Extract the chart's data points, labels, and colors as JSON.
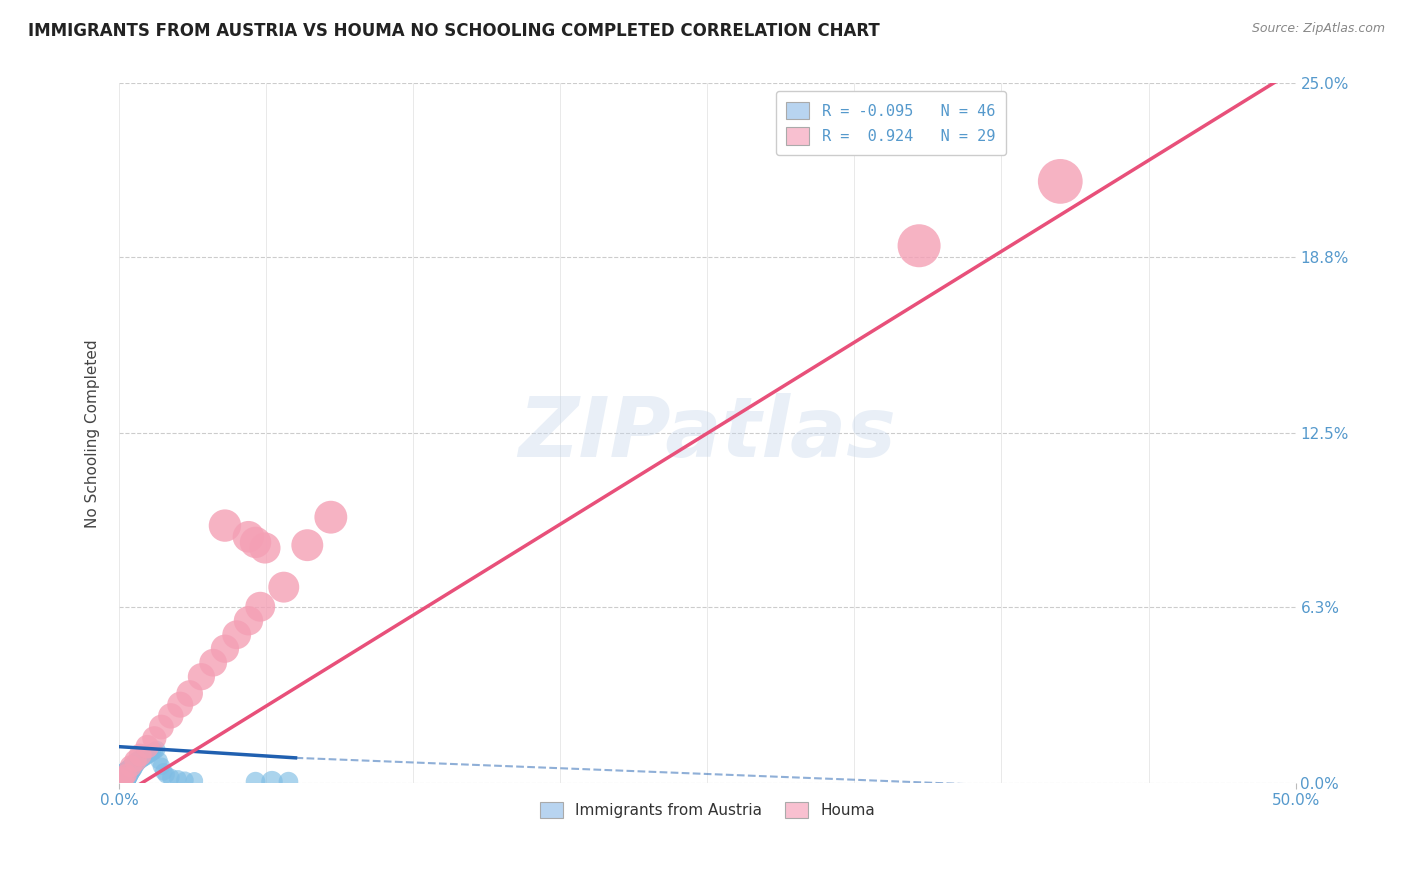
{
  "title": "IMMIGRANTS FROM AUSTRIA VS HOUMA NO SCHOOLING COMPLETED CORRELATION CHART",
  "source": "Source: ZipAtlas.com",
  "ylabel": "No Schooling Completed",
  "xlim": [
    0.0,
    50.0
  ],
  "ylim": [
    0.0,
    25.0
  ],
  "xtick_labels": [
    "0.0%",
    "50.0%"
  ],
  "xtick_positions": [
    0.0,
    50.0
  ],
  "ytick_labels": [
    "0.0%",
    "6.3%",
    "12.5%",
    "18.8%",
    "25.0%"
  ],
  "ytick_positions": [
    0.0,
    6.3,
    12.5,
    18.8,
    25.0
  ],
  "legend_label1": "Immigrants from Austria",
  "legend_label2": "Houma",
  "watermark": "ZIPatlas",
  "blue_color": "#7fbde4",
  "pink_color": "#f4a0b5",
  "blue_line_color": "#2060b0",
  "pink_line_color": "#e8507a",
  "legend_box_blue": "#b8d4f0",
  "legend_box_pink": "#f8c0d0",
  "axis_tick_color": "#5599cc",
  "grid_color": "#cccccc",
  "background_color": "#ffffff",
  "blue_scatter_x": [
    0.05,
    0.08,
    0.1,
    0.12,
    0.15,
    0.18,
    0.2,
    0.22,
    0.25,
    0.28,
    0.3,
    0.32,
    0.35,
    0.38,
    0.4,
    0.42,
    0.45,
    0.48,
    0.5,
    0.52,
    0.55,
    0.58,
    0.6,
    0.65,
    0.7,
    0.75,
    0.8,
    0.9,
    1.0,
    1.1,
    1.2,
    1.3,
    1.4,
    1.5,
    1.6,
    1.7,
    1.8,
    1.9,
    2.0,
    2.2,
    2.5,
    2.8,
    3.2,
    5.8,
    6.5,
    7.2
  ],
  "blue_scatter_y": [
    0.05,
    0.08,
    0.1,
    0.12,
    0.15,
    0.2,
    0.15,
    0.25,
    0.2,
    0.3,
    0.25,
    0.35,
    0.3,
    0.4,
    0.35,
    0.45,
    0.4,
    0.5,
    0.45,
    0.55,
    0.5,
    0.6,
    0.55,
    0.65,
    0.7,
    0.75,
    0.8,
    0.85,
    0.9,
    0.95,
    1.0,
    1.05,
    1.1,
    1.15,
    1.2,
    0.8,
    0.6,
    0.4,
    0.3,
    0.2,
    0.15,
    0.1,
    0.08,
    0.05,
    0.05,
    0.05
  ],
  "blue_scatter_sizes": [
    60,
    55,
    50,
    50,
    45,
    45,
    40,
    40,
    38,
    38,
    35,
    35,
    33,
    33,
    30,
    30,
    28,
    28,
    27,
    27,
    26,
    26,
    25,
    25,
    25,
    25,
    24,
    24,
    23,
    23,
    22,
    22,
    21,
    21,
    20,
    20,
    20,
    20,
    20,
    20,
    20,
    20,
    20,
    25,
    30,
    25
  ],
  "pink_scatter_x": [
    0.1,
    0.2,
    0.3,
    0.5,
    0.7,
    0.9,
    1.2,
    1.5,
    1.8,
    2.2,
    2.6,
    3.0,
    3.5,
    4.0,
    4.5,
    5.0,
    5.5,
    6.0,
    7.0,
    8.0,
    9.0,
    4.5,
    5.5,
    5.8,
    6.2,
    34.0,
    40.0
  ],
  "pink_scatter_y": [
    0.1,
    0.2,
    0.3,
    0.6,
    0.8,
    1.0,
    1.3,
    1.6,
    2.0,
    2.4,
    2.8,
    3.2,
    3.8,
    4.3,
    4.8,
    5.3,
    5.8,
    6.3,
    7.0,
    8.5,
    9.5,
    9.2,
    8.8,
    8.6,
    8.4,
    19.2,
    21.5
  ],
  "pink_scatter_sizes": [
    30,
    30,
    30,
    32,
    33,
    34,
    36,
    38,
    40,
    42,
    44,
    46,
    48,
    50,
    52,
    54,
    56,
    58,
    62,
    66,
    70,
    68,
    65,
    64,
    63,
    120,
    130
  ],
  "blue_line_x0": 0.0,
  "blue_line_y0": 1.3,
  "blue_line_x1": 7.5,
  "blue_line_y1": 0.9,
  "blue_dash_x0": 7.5,
  "blue_dash_y0": 0.9,
  "blue_dash_x1": 50.0,
  "blue_dash_y1": -0.5,
  "pink_line_x0": 0.0,
  "pink_line_y0": -0.5,
  "pink_line_x1": 50.0,
  "pink_line_y1": 25.5
}
